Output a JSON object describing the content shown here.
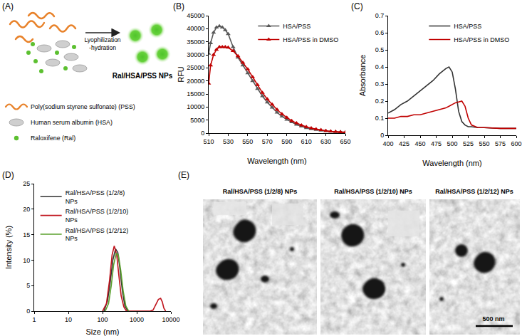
{
  "panel_labels": [
    "(A)",
    "(B)",
    "(C)",
    "(D)",
    "(E)"
  ],
  "schematic": {
    "step": [
      "Lyophilization",
      "-hydration"
    ],
    "product": "Ral/HSA/PSS NPs",
    "key": [
      "Poly(sodium styrene sulfonate) (PSS)",
      "Human serum albumin (HSA)",
      "Raloxifene (Ral)"
    ]
  },
  "chart_data": [
    {
      "type": "line",
      "x_label": "Wavelength (nm)",
      "y_label": "RFU",
      "xlim": [
        510,
        650
      ],
      "xticks": [
        510,
        530,
        550,
        570,
        590,
        610,
        630,
        650
      ],
      "ylim": [
        0,
        45000
      ],
      "yticks": [
        0,
        5000,
        10000,
        15000,
        20000,
        25000,
        30000,
        35000,
        40000,
        45000
      ],
      "grid": false,
      "legend": "upper right",
      "x": [
        510,
        512,
        515,
        518,
        521,
        524,
        527,
        530,
        535,
        540,
        545,
        550,
        555,
        560,
        565,
        570,
        575,
        580,
        585,
        590,
        595,
        600,
        605,
        610,
        615,
        620,
        625,
        630,
        635,
        640,
        645,
        650
      ],
      "series": [
        {
          "name": "HSA/PSS",
          "color": "#595959",
          "marker": "triangle-up",
          "values": [
            30500,
            34500,
            38500,
            40500,
            41000,
            40500,
            39500,
            38000,
            33000,
            29000,
            26000,
            23000,
            20000,
            17000,
            14200,
            11800,
            9800,
            7900,
            6400,
            5200,
            4200,
            3300,
            2600,
            2000,
            1600,
            1300,
            1000,
            800,
            600,
            500,
            400,
            300
          ]
        },
        {
          "name": "HSA/PSS in DMSO",
          "color": "#c00000",
          "marker": "triangle-up",
          "values": [
            19000,
            26000,
            30000,
            32000,
            33000,
            33000,
            33000,
            32800,
            31500,
            29500,
            27000,
            24500,
            21500,
            18500,
            15500,
            13000,
            11000,
            9000,
            7300,
            5900,
            4700,
            3800,
            3000,
            2400,
            1900,
            1500,
            1200,
            900,
            700,
            550,
            420,
            320
          ]
        }
      ]
    },
    {
      "type": "line",
      "x_label": "Wavelength (nm)",
      "y_label": "Absorbance",
      "xlim": [
        400,
        600
      ],
      "xticks": [
        400,
        425,
        450,
        475,
        500,
        525,
        550,
        575,
        600
      ],
      "ylim": [
        0,
        0.7
      ],
      "yticks": [
        0,
        0.1,
        0.2,
        0.3,
        0.4,
        0.5,
        0.6,
        0.7
      ],
      "grid": false,
      "legend": "upper right",
      "x": [
        400,
        410,
        420,
        430,
        440,
        450,
        460,
        470,
        480,
        490,
        495,
        500,
        505,
        510,
        515,
        520,
        525,
        530,
        540,
        550,
        575,
        600
      ],
      "series": [
        {
          "name": "HSA/PSS",
          "color": "#333333",
          "values": [
            0.13,
            0.15,
            0.18,
            0.2,
            0.23,
            0.26,
            0.29,
            0.32,
            0.36,
            0.39,
            0.4,
            0.37,
            0.27,
            0.14,
            0.08,
            0.06,
            0.05,
            0.05,
            0.045,
            0.045,
            0.04,
            0.04
          ]
        },
        {
          "name": "HSA/PSS in DMSO",
          "color": "#c00000",
          "values": [
            0.1,
            0.1,
            0.11,
            0.11,
            0.12,
            0.12,
            0.13,
            0.14,
            0.15,
            0.16,
            0.17,
            0.18,
            0.19,
            0.195,
            0.2,
            0.17,
            0.1,
            0.06,
            0.045,
            0.045,
            0.04,
            0.04
          ]
        }
      ]
    },
    {
      "type": "line",
      "x_label": "Size (nm)",
      "y_label": "Intensity (%)",
      "log": "x",
      "xlim": [
        1,
        10000
      ],
      "xticks": [
        1,
        10,
        100,
        1000,
        10000
      ],
      "ylim": [
        0,
        25
      ],
      "yticks": [
        0,
        5,
        10,
        15,
        20,
        25
      ],
      "grid": false,
      "legend": "upper left",
      "series": [
        {
          "name": "Ral/HSA/PSS (1/2/8) NPs",
          "color": "#333333",
          "x": [
            110,
            140,
            170,
            200,
            240,
            280,
            320,
            380,
            450,
            550
          ],
          "values": [
            0,
            2,
            6,
            10,
            12.2,
            11.5,
            8.5,
            4,
            1,
            0
          ]
        },
        {
          "name": "Ral/HSA/PSS (1/2/10) NPs",
          "color": "#c0141c",
          "x": [
            100,
            130,
            160,
            190,
            220,
            260,
            300,
            350,
            420,
            500,
            600,
            2500,
            3000,
            3600,
            4300,
            5000,
            5600,
            6200,
            7000
          ],
          "values": [
            0,
            1.5,
            6,
            11,
            12.8,
            11,
            7,
            3,
            0.8,
            0,
            0,
            0,
            0.2,
            1.2,
            2.3,
            2.5,
            1.8,
            0.6,
            0
          ]
        },
        {
          "name": "Ral/HSA/PSS (1/2/12) NPs",
          "color": "#5aa02c",
          "x": [
            120,
            150,
            180,
            210,
            250,
            290,
            340,
            400,
            480,
            580
          ],
          "values": [
            0,
            1.5,
            5,
            9,
            11.3,
            11,
            8,
            4,
            1,
            0
          ]
        }
      ]
    }
  ],
  "micrographs": {
    "titles": [
      "Ral/HSA/PSS (1/2/8) NPs",
      "Ral/HSA/PSS (1/2/10) NPs",
      "Ral/HSA/PSS (1/2/12) NPs"
    ],
    "scale_bar": "500 nm"
  }
}
